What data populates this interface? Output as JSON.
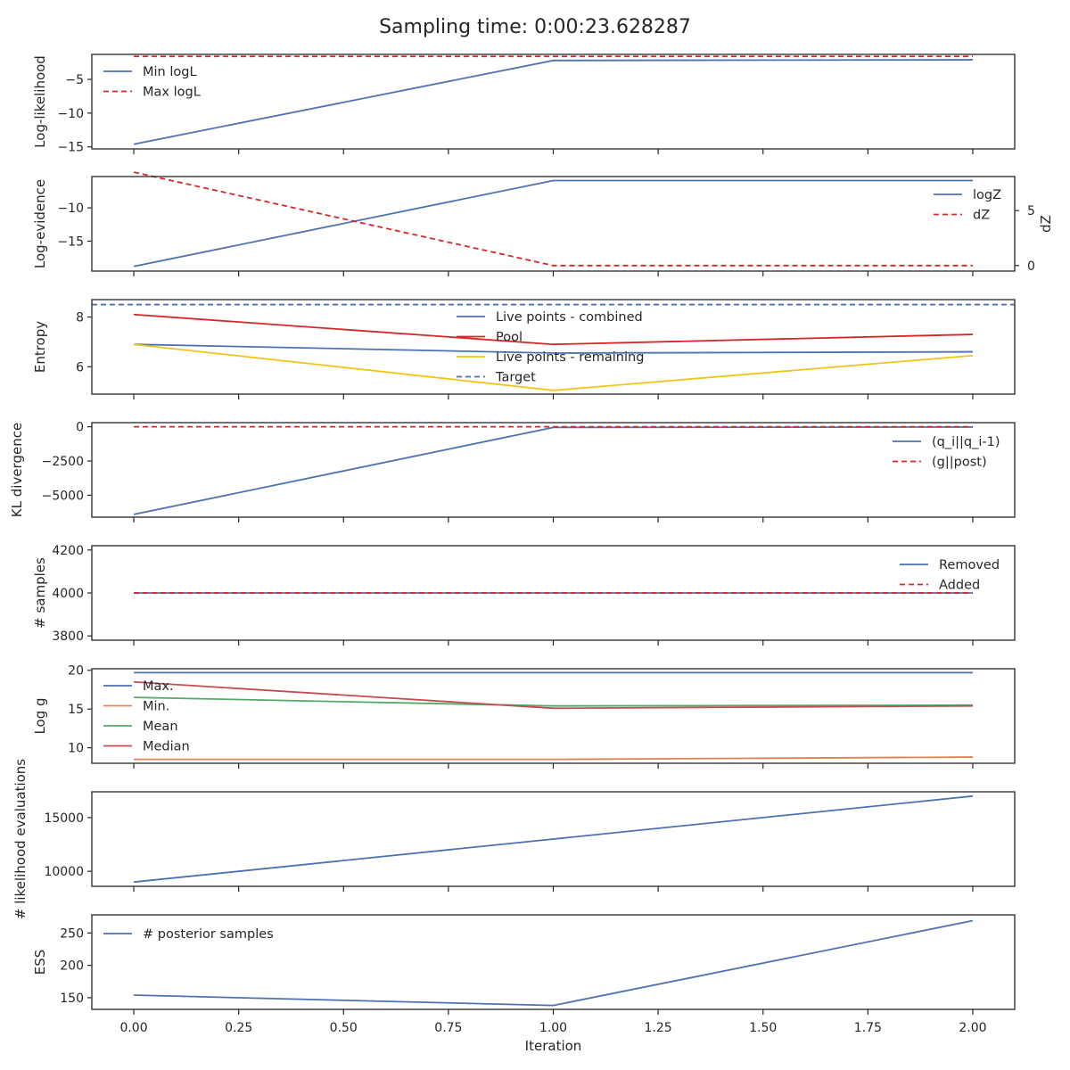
{
  "title": "Sampling time: 0:00:23.628287",
  "xlabel": "Iteration",
  "x_ticks": [
    "0.00",
    "0.25",
    "0.50",
    "0.75",
    "1.00",
    "1.25",
    "1.50",
    "1.75",
    "2.00"
  ],
  "chart_data": [
    {
      "type": "line",
      "ylabel": "Log-likelihood",
      "ylim": [
        -15.3,
        -1.3
      ],
      "y_ticks": [
        -15,
        -10,
        -5
      ],
      "y_tick_labels": [
        "−15",
        "−10",
        "−5"
      ],
      "legend": "upper left",
      "x": [
        0,
        1,
        2
      ],
      "series": [
        {
          "name": "Min logL",
          "values": [
            -14.6,
            -2.2,
            -2.1
          ],
          "color": "#4c72b0",
          "style": "solid"
        },
        {
          "name": "Max logL",
          "values": [
            -1.6,
            -1.6,
            -1.6
          ],
          "color": "#d62728",
          "style": "dashed"
        }
      ]
    },
    {
      "type": "line",
      "ylabel": "Log-evidence",
      "y2label": "dZ",
      "ylim": [
        -19.5,
        -5.3
      ],
      "y_ticks": [
        -15,
        -10
      ],
      "y_tick_labels": [
        "−15",
        "−10"
      ],
      "y2lim": [
        -0.5,
        8.1
      ],
      "y2_ticks": [
        0,
        5
      ],
      "y2_tick_labels": [
        "0",
        "5"
      ],
      "legend": "center right",
      "x": [
        0,
        1,
        2
      ],
      "series": [
        {
          "name": "logZ",
          "values": [
            -18.8,
            -5.9,
            -5.9
          ],
          "color": "#4c72b0",
          "style": "solid",
          "axis": "left"
        },
        {
          "name": "dZ",
          "values": [
            8.5,
            0.0,
            0.0
          ],
          "color": "#d62728",
          "style": "dashed",
          "axis": "right"
        }
      ]
    },
    {
      "type": "line",
      "ylabel": "Entropy",
      "ylim": [
        4.9,
        8.7
      ],
      "y_ticks": [
        6,
        8
      ],
      "y_tick_labels": [
        "6",
        "8"
      ],
      "legend": "upper center",
      "x": [
        0,
        1,
        2
      ],
      "series": [
        {
          "name": "Live points - combined",
          "values": [
            6.9,
            6.55,
            6.6
          ],
          "color": "#4c72b0",
          "style": "solid"
        },
        {
          "name": "Pool",
          "values": [
            8.1,
            6.9,
            7.3
          ],
          "color": "#d62728",
          "style": "solid"
        },
        {
          "name": "Live points - remaining",
          "values": [
            6.9,
            5.05,
            6.45
          ],
          "color": "#f0c419",
          "style": "solid"
        },
        {
          "name": "Target",
          "values": [
            8.5,
            8.5,
            8.5
          ],
          "color": "#4c72b0",
          "style": "dashed",
          "full_width": true
        }
      ]
    },
    {
      "type": "line",
      "ylabel": "KL divergence",
      "ylim": [
        -6600,
        300
      ],
      "y_ticks": [
        -5000,
        -2500,
        0
      ],
      "y_tick_labels": [
        "−5000",
        "−2500",
        "0"
      ],
      "legend": "center right",
      "x": [
        0,
        1,
        2
      ],
      "series": [
        {
          "name": "(q_i||q_i-1)",
          "values": [
            -6400,
            -50,
            -20
          ],
          "color": "#4c72b0",
          "style": "solid"
        },
        {
          "name": "(g||post)",
          "values": [
            0,
            0,
            0
          ],
          "color": "#d62728",
          "style": "dashed"
        }
      ]
    },
    {
      "type": "line",
      "ylabel": "# samples",
      "ylim": [
        3780,
        4220
      ],
      "y_ticks": [
        3800,
        4000,
        4200
      ],
      "y_tick_labels": [
        "3800",
        "4000",
        "4200"
      ],
      "legend": "upper right",
      "x": [
        0,
        1,
        2
      ],
      "series": [
        {
          "name": "Removed",
          "values": [
            4000,
            4000,
            4000
          ],
          "color": "#4c72b0",
          "style": "solid"
        },
        {
          "name": "Added",
          "values": [
            4000,
            4000,
            4000
          ],
          "color": "#d62728",
          "style": "dashed"
        }
      ]
    },
    {
      "type": "line",
      "ylabel": "Log g",
      "ylim": [
        8.0,
        20.2
      ],
      "y_ticks": [
        10,
        15,
        20
      ],
      "y_tick_labels": [
        "10",
        "15",
        "20"
      ],
      "legend": "upper left",
      "x": [
        0,
        1,
        2
      ],
      "series": [
        {
          "name": "Max.",
          "values": [
            19.7,
            19.7,
            19.7
          ],
          "color": "#4c72b0",
          "style": "solid"
        },
        {
          "name": "Min.",
          "values": [
            8.5,
            8.5,
            8.8
          ],
          "color": "#dd8452",
          "style": "solid"
        },
        {
          "name": "Mean",
          "values": [
            16.5,
            15.4,
            15.5
          ],
          "color": "#55a868",
          "style": "solid"
        },
        {
          "name": "Median",
          "values": [
            18.5,
            15.1,
            15.4
          ],
          "color": "#c44e52",
          "style": "solid"
        }
      ]
    },
    {
      "type": "line",
      "ylabel": "# likelihood evaluations",
      "ylim": [
        8600,
        17400
      ],
      "y_ticks": [
        10000,
        15000
      ],
      "y_tick_labels": [
        "10000",
        "15000"
      ],
      "legend": "none",
      "x": [
        0,
        1,
        2
      ],
      "series": [
        {
          "name": "",
          "values": [
            9000,
            13000,
            17000
          ],
          "color": "#4c72b0",
          "style": "solid"
        }
      ]
    },
    {
      "type": "line",
      "ylabel": "ESS",
      "ylim": [
        132,
        278
      ],
      "y_ticks": [
        150,
        200,
        250
      ],
      "y_tick_labels": [
        "150",
        "200",
        "250"
      ],
      "legend": "upper left",
      "x": [
        0,
        1,
        2
      ],
      "series": [
        {
          "name": "# posterior samples",
          "values": [
            154,
            138,
            269
          ],
          "color": "#4c72b0",
          "style": "solid"
        }
      ]
    }
  ]
}
